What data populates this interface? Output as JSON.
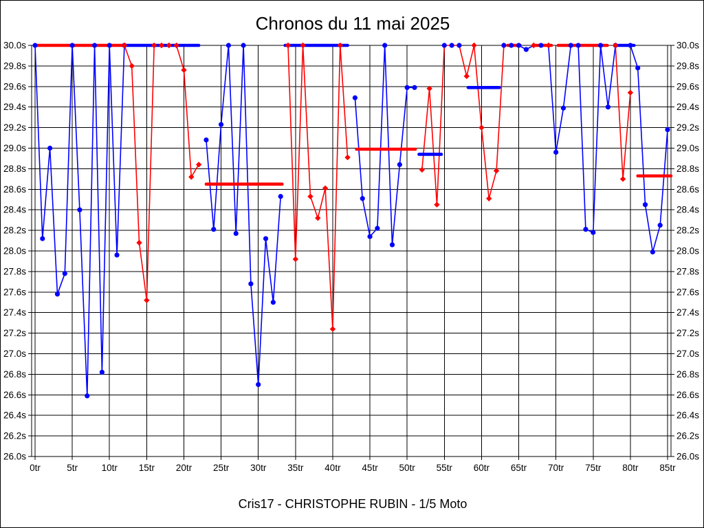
{
  "page": {
    "title": "Chronos du 11 mai 2025",
    "caption": "Cris17 - CHRISTOPHE RUBIN - 1/5 Moto"
  },
  "chart_data": {
    "type": "line",
    "title": "Chronos du 11 mai 2025",
    "subtitle": "Cris17 - CHRISTOPHE RUBIN - 1/5 Moto",
    "xlabel": "",
    "ylabel": "",
    "x_axis": {
      "min": 0,
      "max": 85.5,
      "tick_step": 5,
      "unit": "tr",
      "tick_labels": [
        "0tr",
        "5tr",
        "10tr",
        "15tr",
        "20tr",
        "25tr",
        "30tr",
        "35tr",
        "40tr",
        "45tr",
        "50tr",
        "55tr",
        "60tr",
        "65tr",
        "70tr",
        "75tr",
        "80tr",
        "85tr"
      ]
    },
    "y_axis": {
      "min": 26.0,
      "max": 30.0,
      "tick_step": 0.2,
      "unit": "s",
      "tick_labels": [
        "30.0s",
        "29.8s",
        "29.6s",
        "29.4s",
        "29.2s",
        "29.0s",
        "28.8s",
        "28.6s",
        "28.4s",
        "28.2s",
        "28.0s",
        "27.8s",
        "27.6s",
        "27.4s",
        "27.2s",
        "27.0s",
        "26.8s",
        "26.6s",
        "26.4s",
        "26.2s",
        "26.0s"
      ]
    },
    "grid": true,
    "legend": false,
    "colors": {
      "blue": "#0000ff",
      "red": "#ff0000",
      "grid": "#000000",
      "background": "#ffffff"
    },
    "series": [
      {
        "name": "run-1",
        "color": "blue",
        "marker": "circle",
        "points": [
          [
            0,
            30
          ],
          [
            1,
            28.12
          ],
          [
            2,
            29.0
          ],
          [
            3,
            27.58
          ],
          [
            4,
            27.78
          ],
          [
            5,
            30
          ],
          [
            6,
            28.4
          ],
          [
            7,
            26.59
          ],
          [
            8,
            30
          ],
          [
            9,
            26.82
          ],
          [
            10,
            30
          ],
          [
            11,
            27.96
          ],
          [
            12,
            30
          ]
        ],
        "dot_colors": {}
      },
      {
        "name": "run-2",
        "color": "red",
        "marker": "diamond",
        "points": [
          [
            12,
            30
          ],
          [
            13,
            29.8
          ],
          [
            14,
            28.08
          ],
          [
            15,
            27.52
          ],
          [
            16,
            30
          ],
          [
            17,
            30
          ],
          [
            18,
            30
          ],
          [
            19,
            30
          ],
          [
            20,
            29.76
          ],
          [
            21,
            28.72
          ],
          [
            22,
            28.84
          ]
        ],
        "dot_colors": {}
      },
      {
        "name": "run-3",
        "color": "blue",
        "marker": "circle",
        "points": [
          [
            23,
            29.08
          ],
          [
            24,
            28.21
          ],
          [
            25,
            29.23
          ],
          [
            26,
            30
          ],
          [
            27,
            28.17
          ],
          [
            28,
            30
          ],
          [
            29,
            27.68
          ],
          [
            30,
            26.7
          ],
          [
            31,
            28.12
          ],
          [
            32,
            27.5
          ],
          [
            33,
            28.53
          ]
        ],
        "dot_colors": {}
      },
      {
        "name": "run-4",
        "color": "red",
        "marker": "diamond",
        "points": [
          [
            34,
            30
          ],
          [
            35,
            27.92
          ],
          [
            36,
            30
          ],
          [
            37,
            28.53
          ],
          [
            38,
            28.32
          ],
          [
            39,
            28.61
          ],
          [
            40,
            27.24
          ],
          [
            41,
            30
          ],
          [
            42,
            28.91
          ]
        ],
        "dot_colors": {}
      },
      {
        "name": "run-5",
        "color": "blue",
        "marker": "circle",
        "points": [
          [
            43,
            29.49
          ],
          [
            44,
            28.51
          ],
          [
            45,
            28.14
          ],
          [
            46,
            28.22
          ],
          [
            47,
            30
          ],
          [
            48,
            28.06
          ],
          [
            49,
            28.84
          ],
          [
            50,
            29.59
          ],
          [
            51,
            29.59
          ]
        ],
        "dot_colors": {}
      },
      {
        "name": "run-6",
        "color": "red",
        "marker": "diamond",
        "points": [
          [
            52,
            28.79
          ],
          [
            53,
            29.58
          ],
          [
            54,
            28.45
          ],
          [
            55,
            30
          ],
          [
            56,
            30
          ],
          [
            57,
            30
          ],
          [
            58,
            29.7
          ],
          [
            59,
            30
          ],
          [
            60,
            29.2
          ],
          [
            61,
            28.51
          ],
          [
            62,
            28.78
          ],
          [
            63,
            30
          ]
        ],
        "dot_colors": {
          "55": "blue",
          "56": "blue",
          "57": "blue"
        }
      },
      {
        "name": "run-7",
        "color": "blue",
        "marker": "circle",
        "points": [
          [
            63,
            30
          ],
          [
            64,
            30
          ],
          [
            65,
            30
          ],
          [
            66,
            29.96
          ],
          [
            67,
            30
          ],
          [
            68,
            30
          ],
          [
            69,
            30
          ],
          [
            70,
            28.96
          ],
          [
            71,
            29.39
          ],
          [
            72,
            30
          ],
          [
            73,
            30
          ],
          [
            74,
            28.21
          ],
          [
            75,
            28.18
          ],
          [
            76,
            30
          ],
          [
            77,
            29.4
          ],
          [
            78,
            30
          ]
        ],
        "dot_colors": {
          "67": "red",
          "69": "red"
        }
      },
      {
        "name": "run-8",
        "color": "red",
        "marker": "diamond",
        "points": [
          [
            78,
            30
          ],
          [
            79,
            28.7
          ],
          [
            80,
            29.54
          ]
        ],
        "dot_colors": {}
      },
      {
        "name": "run-9",
        "color": "blue",
        "marker": "circle",
        "points": [
          [
            80,
            30
          ],
          [
            81,
            29.78
          ],
          [
            82,
            28.45
          ],
          [
            83,
            27.99
          ],
          [
            84,
            28.25
          ],
          [
            85,
            29.18
          ]
        ],
        "dot_colors": {}
      }
    ],
    "avg_segments": [
      {
        "color": "red",
        "from_lap": 0,
        "to_lap": 12.2,
        "seconds": 30
      },
      {
        "color": "blue",
        "from_lap": 12.2,
        "to_lap": 22,
        "seconds": 30
      },
      {
        "color": "red",
        "from_lap": 23,
        "to_lap": 33.2,
        "seconds": 28.65
      },
      {
        "color": "blue",
        "from_lap": 33.6,
        "to_lap": 42,
        "seconds": 30
      },
      {
        "color": "red",
        "from_lap": 43.2,
        "to_lap": 51.1,
        "seconds": 28.99
      },
      {
        "color": "blue",
        "from_lap": 51.6,
        "to_lap": 54.6,
        "seconds": 28.94
      },
      {
        "color": "blue",
        "from_lap": 58.2,
        "to_lap": 62.4,
        "seconds": 29.59
      },
      {
        "color": "red",
        "from_lap": 63.5,
        "to_lap": 65.2,
        "seconds": 30
      },
      {
        "color": "red",
        "from_lap": 67,
        "to_lap": 69.4,
        "seconds": 30
      },
      {
        "color": "red",
        "from_lap": 70.3,
        "to_lap": 76.9,
        "seconds": 30
      },
      {
        "color": "blue",
        "from_lap": 78.4,
        "to_lap": 80.5,
        "seconds": 30
      },
      {
        "color": "red",
        "from_lap": 81,
        "to_lap": 85.5,
        "seconds": 28.73
      }
    ]
  }
}
